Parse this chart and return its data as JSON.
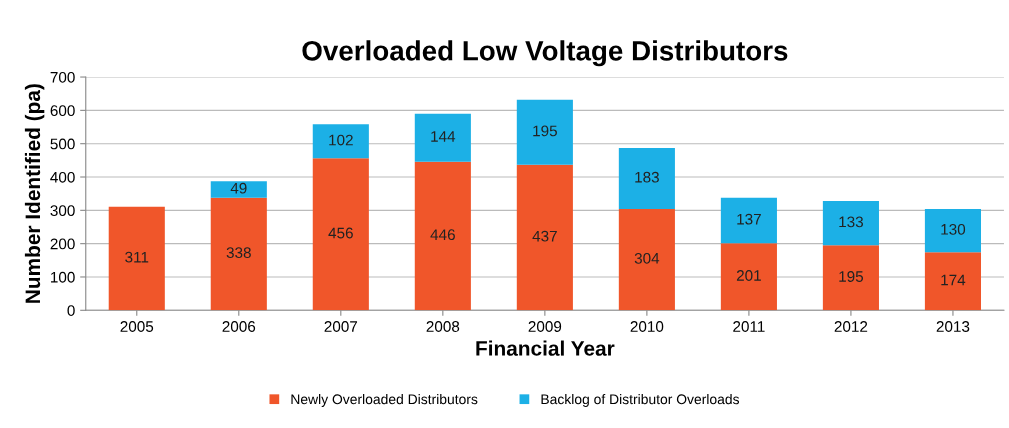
{
  "chart_data": {
    "type": "bar",
    "title": "Overloaded Low Voltage Distributors",
    "xlabel": "Financial Year",
    "ylabel": "Number Identified (pa)",
    "categories": [
      "2005",
      "2006",
      "2007",
      "2008",
      "2009",
      "2010",
      "2011",
      "2012",
      "2013"
    ],
    "series": [
      {
        "name": "Newly Overloaded Distributors",
        "color": "#f0562a",
        "values": [
          311,
          338,
          456,
          446,
          437,
          304,
          201,
          195,
          174
        ]
      },
      {
        "name": "Backlog of Distributor Overloads",
        "color": "#1cb0e6",
        "values": [
          null,
          49,
          102,
          144,
          195,
          183,
          137,
          133,
          130
        ]
      }
    ],
    "stacked": true,
    "data_labels": true,
    "ylim": [
      0,
      700
    ],
    "yticks": [
      0,
      100,
      200,
      300,
      400,
      500,
      600,
      700
    ],
    "grid": "y",
    "legend": "bottom"
  }
}
